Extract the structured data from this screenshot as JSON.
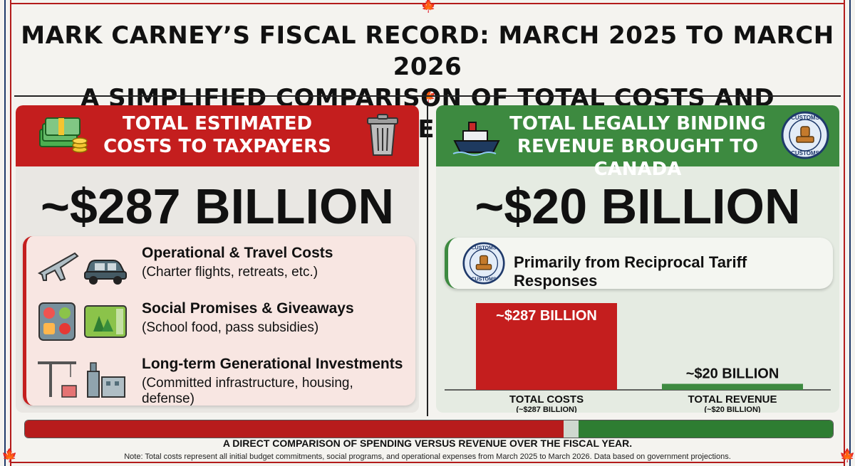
{
  "title": {
    "line1": "MARK CARNEY’S FISCAL RECORD: MARCH 2025 TO MARCH 2026",
    "line2": "A SIMPLIFIED COMPARISON OF TOTAL COSTS AND REVENUE"
  },
  "colors": {
    "cost_red": "#c41e1e",
    "revenue_green": "#3d8a40",
    "frame_navy": "#1f3a6b"
  },
  "costs_panel": {
    "header_line1": "TOTAL ESTIMATED",
    "header_line2": "COSTS TO TAXPAYERS",
    "header_icons": [
      "money-stack-icon",
      "trash-can-icon"
    ],
    "amount": "~$287 BILLION",
    "items": [
      {
        "title": "Operational & Travel Costs",
        "subtitle": "(Charter flights, retreats, etc.)",
        "icons": [
          "airplane-icon",
          "car-icon"
        ]
      },
      {
        "title": "Social Promises & Giveaways",
        "subtitle": "(School food, pass subsidies)",
        "icons": [
          "food-tray-icon",
          "park-pass-icon"
        ]
      },
      {
        "title": "Long-term Generational Investments",
        "subtitle": "(Committed infrastructure, housing, defense)",
        "icons": [
          "construction-crane-icon",
          "industrial-plant-icon"
        ]
      }
    ]
  },
  "revenue_panel": {
    "header_line1": "TOTAL LEGALLY BINDING",
    "header_line2": "REVENUE BROUGHT TO CANADA",
    "header_icons": [
      "cargo-ship-icon",
      "customs-stamp-icon"
    ],
    "stamp_text_top": "CUSTOMS",
    "stamp_text_bottom": "CUSTOMS",
    "amount": "~$20 BILLION",
    "source": "Primarily from Reciprocal Tariff Responses"
  },
  "chart_data": {
    "type": "bar",
    "categories": [
      "TOTAL COSTS",
      "TOTAL REVENUE"
    ],
    "category_sublabels": [
      "(~$287 BILLION)",
      "(~$20 BILLION)"
    ],
    "values": [
      287,
      20
    ],
    "data_labels": [
      "~$287 BILLION",
      "~$20 BILLION"
    ],
    "colors": [
      "#c41e1e",
      "#3d8a40"
    ],
    "ylim": [
      0,
      287
    ],
    "grid": false
  },
  "comparison_bar": {
    "cost_share": 0.667,
    "gap_share": 0.018,
    "revenue_share": 0.315
  },
  "caption": "A DIRECT COMPARISON OF SPENDING VERSUS REVENUE OVER THE FISCAL YEAR.",
  "note": "Note: Total costs represent all initial budget commitments, social programs, and operational expenses from March 2025 to March 2026. Data based on government projections."
}
